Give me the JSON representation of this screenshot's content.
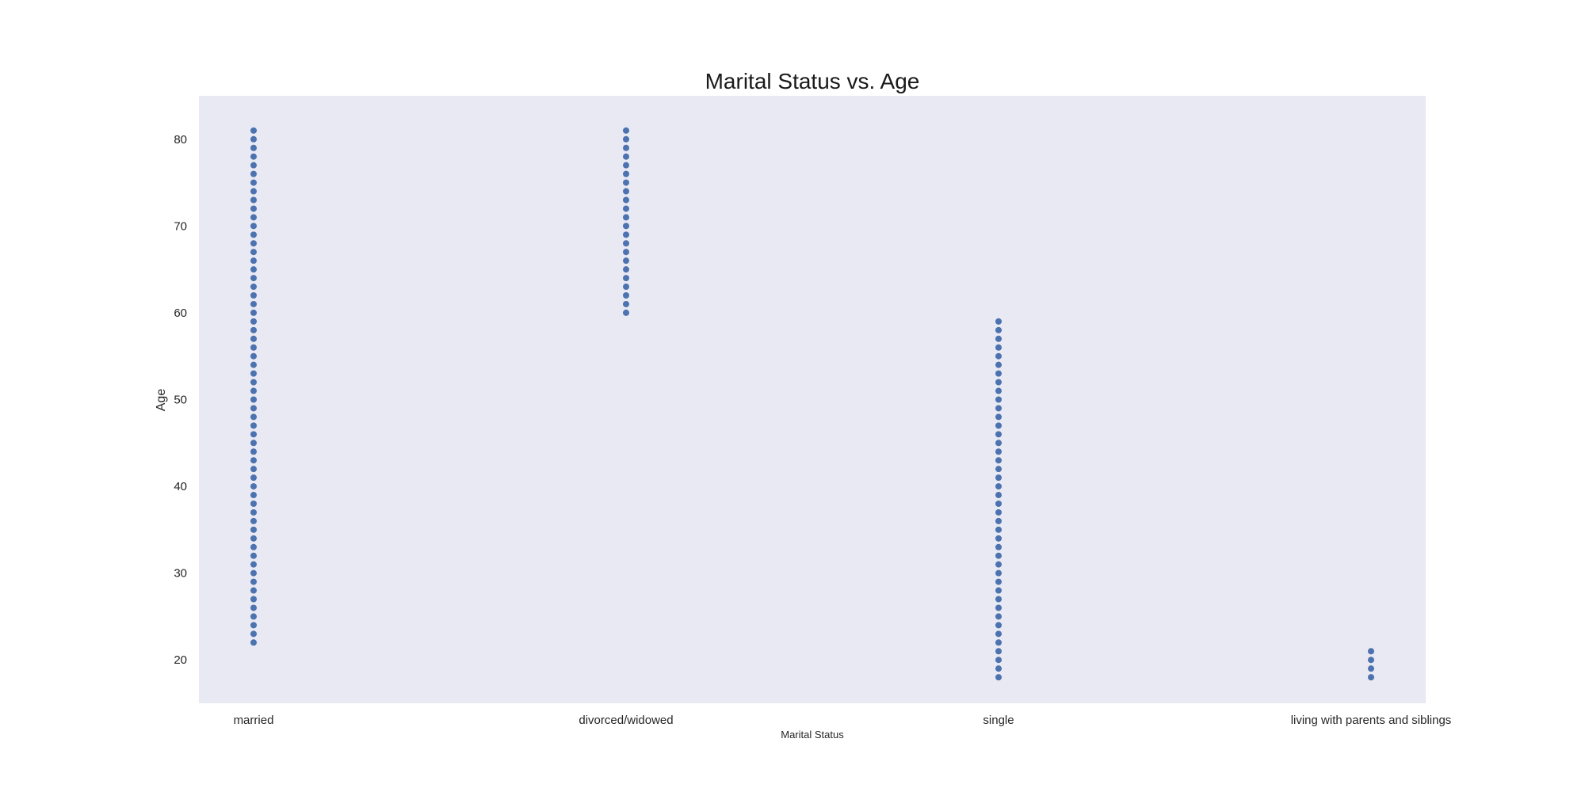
{
  "chart_data": {
    "type": "scatter",
    "title": "Marital Status vs. Age",
    "xlabel": "Marital Status",
    "ylabel": "Age",
    "categories": [
      "married",
      "divorced/widowed",
      "single",
      "living with parents and siblings"
    ],
    "y_ticks": [
      20,
      30,
      40,
      50,
      60,
      70,
      80
    ],
    "ylim": [
      15,
      85
    ],
    "grid": false,
    "point_color": "#4c72b0",
    "plot_background": "#e8e9f2",
    "series": [
      {
        "category": "married",
        "ages": [
          22,
          23,
          24,
          25,
          26,
          27,
          28,
          29,
          30,
          31,
          32,
          33,
          34,
          35,
          36,
          37,
          38,
          39,
          40,
          41,
          42,
          43,
          44,
          45,
          46,
          47,
          48,
          49,
          50,
          51,
          52,
          53,
          54,
          55,
          56,
          57,
          58,
          59,
          60,
          61,
          62,
          63,
          64,
          65,
          66,
          67,
          68,
          69,
          70,
          71,
          72,
          73,
          74,
          75,
          76,
          77,
          78,
          79,
          80,
          81
        ]
      },
      {
        "category": "divorced/widowed",
        "ages": [
          60,
          61,
          62,
          63,
          64,
          65,
          66,
          67,
          68,
          69,
          70,
          71,
          72,
          73,
          74,
          75,
          76,
          77,
          78,
          79,
          80,
          81
        ]
      },
      {
        "category": "single",
        "ages": [
          18,
          19,
          20,
          21,
          22,
          23,
          24,
          25,
          26,
          27,
          28,
          29,
          30,
          31,
          32,
          33,
          34,
          35,
          36,
          37,
          38,
          39,
          40,
          41,
          42,
          43,
          44,
          45,
          46,
          47,
          48,
          49,
          50,
          51,
          52,
          53,
          54,
          55,
          56,
          57,
          58,
          59
        ]
      },
      {
        "category": "living with parents and siblings",
        "ages": [
          18,
          19,
          20,
          21
        ]
      }
    ]
  }
}
